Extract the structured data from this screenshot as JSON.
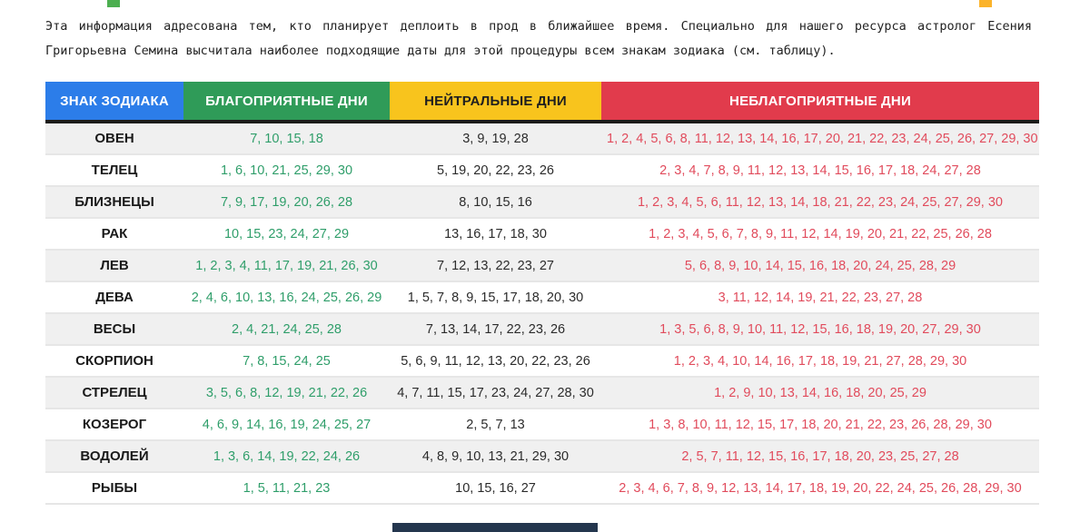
{
  "page": {
    "intro_text": "Эта информация адресована тем, кто планирует деплоить в прод в ближайшее время. Специально для нашего ресурса астролог Есения Григорьевна Семина высчитала наиболее подходящие даты для этой процедуры всем знакам зодиака (см. таблицу)."
  },
  "colors": {
    "favorable_text": "#2f9e6a",
    "neutral_text": "#2b2b2b",
    "unfavorable_text": "#e14b5c",
    "header_divider": "#1c1c1a"
  },
  "table": {
    "headers": [
      {
        "label": "ЗНАК ЗОДИАКА",
        "color": "#2c7de9"
      },
      {
        "label": "БЛАГОПРИЯТНЫЕ ДНИ",
        "color": "#2f9b58"
      },
      {
        "label": "НЕЙТРАЛЬНЫЕ ДНИ",
        "color": "#f8c41d"
      },
      {
        "label": "НЕБЛАГОПРИЯТНЫЕ ДНИ",
        "color": "#e13b4c"
      }
    ],
    "rows": [
      {
        "sign": "ОВЕН",
        "favorable": "7, 10, 15, 18",
        "neutral": "3, 9, 19, 28",
        "unfavorable": "1, 2, 4, 5, 6, 8, 11, 12, 13, 14, 16, 17, 20, 21, 22, 23, 24, 25, 26, 27, 29, 30"
      },
      {
        "sign": "ТЕЛЕЦ",
        "favorable": "1, 6, 10, 21, 25, 29, 30",
        "neutral": "5, 19, 20, 22, 23, 26",
        "unfavorable": "2, 3, 4, 7, 8, 9, 11, 12, 13, 14, 15, 16, 17, 18, 24, 27, 28"
      },
      {
        "sign": "БЛИЗНЕЦЫ",
        "favorable": "7, 9, 17, 19, 20, 26, 28",
        "neutral": "8, 10, 15, 16",
        "unfavorable": "1, 2, 3, 4, 5, 6, 11, 12, 13, 14, 18, 21, 22, 23, 24, 25, 27, 29, 30"
      },
      {
        "sign": "РАК",
        "favorable": "10, 15, 23, 24, 27, 29",
        "neutral": "13, 16, 17, 18, 30",
        "unfavorable": "1, 2, 3, 4, 5, 6, 7, 8, 9, 11, 12, 14, 19, 20, 21, 22, 25, 26, 28"
      },
      {
        "sign": "ЛЕВ",
        "favorable": "1, 2, 3, 4, 11, 17, 19, 21, 26, 30",
        "neutral": "7, 12, 13, 22, 23, 27",
        "unfavorable": "5, 6, 8, 9, 10, 14, 15, 16, 18, 20, 24, 25, 28, 29"
      },
      {
        "sign": "ДЕВА",
        "favorable": "2, 4, 6, 10, 13, 16, 24, 25, 26, 29",
        "neutral": "1, 5, 7, 8, 9, 15, 17, 18, 20, 30",
        "unfavorable": "3, 11, 12, 14, 19, 21, 22, 23, 27, 28"
      },
      {
        "sign": "ВЕСЫ",
        "favorable": "2, 4, 21, 24, 25, 28",
        "neutral": "7, 13, 14, 17, 22, 23, 26",
        "unfavorable": "1, 3, 5, 6, 8, 9, 10, 11, 12, 15, 16, 18, 19, 20, 27, 29, 30"
      },
      {
        "sign": "СКОРПИОН",
        "favorable": "7, 8, 15, 24, 25",
        "neutral": "5, 6, 9, 11, 12, 13, 20, 22, 23, 26",
        "unfavorable": "1, 2, 3, 4, 10, 14, 16, 17, 18, 19, 21, 27, 28, 29, 30"
      },
      {
        "sign": "СТРЕЛЕЦ",
        "favorable": "3, 5, 6, 8, 12, 19, 21, 22, 26",
        "neutral": "4, 7, 11, 15, 17, 23, 24, 27, 28, 30",
        "unfavorable": "1, 2, 9, 10, 13, 14, 16, 18, 20, 25, 29"
      },
      {
        "sign": "КОЗЕРОГ",
        "favorable": "4, 6, 9, 14, 16, 19, 24, 25, 27",
        "neutral": "2, 5, 7, 13",
        "unfavorable": "1, 3, 8, 10, 11, 12, 15, 17, 18, 20, 21, 22, 23, 26, 28, 29, 30"
      },
      {
        "sign": "ВОДОЛЕЙ",
        "favorable": "1, 3, 6, 14, 19, 22, 24, 26",
        "neutral": "4, 8, 9, 10, 13, 21, 29, 30",
        "unfavorable": "2, 5, 7, 11, 12, 15, 16, 17, 18, 20, 23, 25, 27, 28"
      },
      {
        "sign": "РЫБЫ",
        "favorable": "1, 5, 11, 21, 23",
        "neutral": "10, 15, 16, 27",
        "unfavorable": "2, 3, 4, 6, 7, 8, 9, 12, 13, 14, 17, 18, 19, 20, 22, 24, 25, 26, 28, 29, 30"
      }
    ]
  }
}
